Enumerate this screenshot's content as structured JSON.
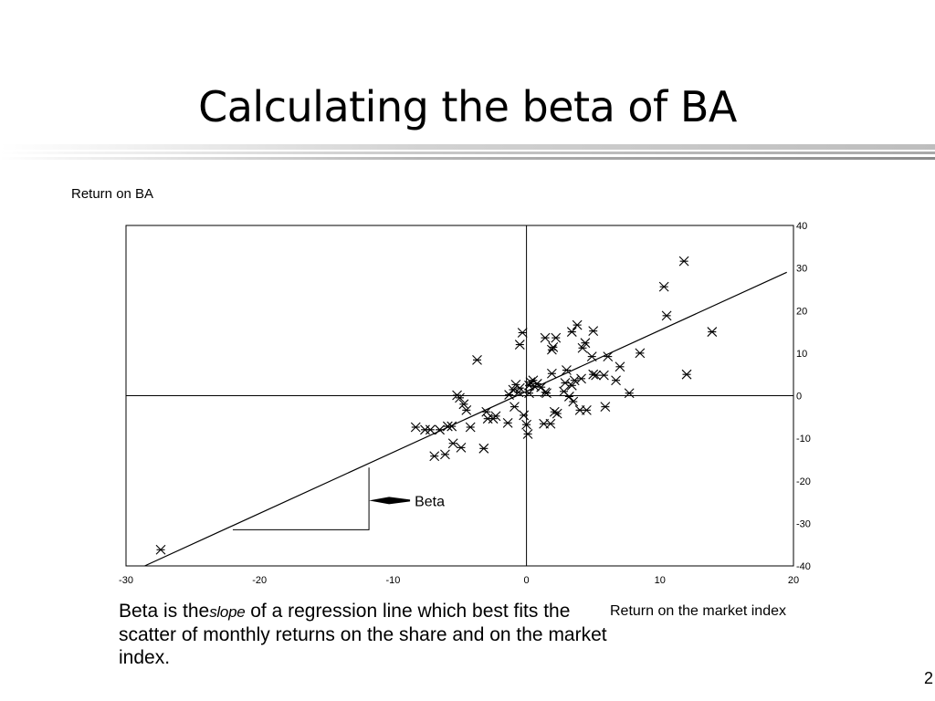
{
  "slide": {
    "title": "Calculating the beta of BA",
    "page_number": "2"
  },
  "caption": {
    "before": "Beta is the",
    "slope_word": "slope",
    "after": " of a regression line which best fits the scatter of monthly returns on the share and on the market index."
  },
  "chart_data": {
    "type": "scatter",
    "xlabel": "Return on the market index",
    "ylabel": "Return on BA",
    "xlim": [
      -30,
      20
    ],
    "ylim": [
      -40,
      40
    ],
    "x_ticks": [
      -30,
      -20,
      -10,
      0,
      10,
      20
    ],
    "y_ticks": [
      40,
      30,
      20,
      10,
      0,
      -10,
      -20,
      -30,
      -40
    ],
    "y_axis_side": "right",
    "grid": false,
    "reference_lines": {
      "x": 0,
      "y": 0
    },
    "marker": "asterisk",
    "points": [
      [
        -27.4,
        -36.2
      ],
      [
        -8.3,
        -7.4
      ],
      [
        -7.6,
        -8.0
      ],
      [
        -7.2,
        -8.0
      ],
      [
        -6.9,
        -14.2
      ],
      [
        -6.5,
        -8.0
      ],
      [
        -6.1,
        -13.8
      ],
      [
        -5.9,
        -7.2
      ],
      [
        -5.6,
        -7.2
      ],
      [
        -5.5,
        -11.2
      ],
      [
        -5.2,
        0.1
      ],
      [
        -5.0,
        -0.5
      ],
      [
        -4.9,
        -12.2
      ],
      [
        -4.7,
        -2.0
      ],
      [
        -4.5,
        -3.4
      ],
      [
        -4.2,
        -7.4
      ],
      [
        -3.7,
        8.4
      ],
      [
        -3.2,
        -12.4
      ],
      [
        -3.0,
        -3.8
      ],
      [
        -2.9,
        -5.4
      ],
      [
        -2.5,
        -5.4
      ],
      [
        -2.3,
        -4.8
      ],
      [
        -1.4,
        -6.4
      ],
      [
        -1.3,
        0.2
      ],
      [
        -1.0,
        1.4
      ],
      [
        -0.9,
        -2.6
      ],
      [
        -0.8,
        2.6
      ],
      [
        -0.6,
        0.8
      ],
      [
        -0.5,
        1.8
      ],
      [
        -0.5,
        12.0
      ],
      [
        -0.3,
        14.8
      ],
      [
        -0.2,
        -4.6
      ],
      [
        0.0,
        -6.8
      ],
      [
        0.1,
        -9.0
      ],
      [
        0.2,
        2.4
      ],
      [
        0.2,
        0.6
      ],
      [
        0.3,
        3.2
      ],
      [
        0.5,
        3.6
      ],
      [
        0.6,
        2.2
      ],
      [
        0.8,
        2.8
      ],
      [
        1.1,
        2.0
      ],
      [
        1.3,
        -6.6
      ],
      [
        1.4,
        0.8
      ],
      [
        1.5,
        0.6
      ],
      [
        1.4,
        13.6
      ],
      [
        1.8,
        -6.6
      ],
      [
        1.9,
        5.2
      ],
      [
        1.9,
        10.8
      ],
      [
        2.0,
        11.4
      ],
      [
        2.1,
        -3.8
      ],
      [
        2.3,
        -4.2
      ],
      [
        2.2,
        13.6
      ],
      [
        2.8,
        1.0
      ],
      [
        2.9,
        3.0
      ],
      [
        3.0,
        6.0
      ],
      [
        3.2,
        -0.2
      ],
      [
        3.4,
        15.0
      ],
      [
        3.4,
        2.4
      ],
      [
        3.6,
        3.6
      ],
      [
        3.5,
        -1.4
      ],
      [
        3.8,
        16.6
      ],
      [
        4.0,
        -3.4
      ],
      [
        4.1,
        4.0
      ],
      [
        4.2,
        11.2
      ],
      [
        4.4,
        12.4
      ],
      [
        4.5,
        -3.4
      ],
      [
        4.9,
        9.2
      ],
      [
        5.0,
        15.2
      ],
      [
        5.0,
        5.0
      ],
      [
        5.2,
        4.8
      ],
      [
        5.8,
        4.8
      ],
      [
        5.9,
        -2.6
      ],
      [
        6.1,
        9.2
      ],
      [
        6.7,
        3.6
      ],
      [
        7.0,
        6.8
      ],
      [
        7.7,
        0.6
      ],
      [
        8.5,
        10.0
      ],
      [
        10.3,
        25.6
      ],
      [
        10.5,
        18.8
      ],
      [
        11.8,
        31.6
      ],
      [
        12.0,
        5.0
      ],
      [
        13.9,
        15.0
      ]
    ],
    "regression_line": {
      "x": [
        -28.6,
        19.5
      ],
      "y": [
        -40,
        29
      ]
    },
    "annotation": {
      "text": "Beta",
      "rise_run_triangle": {
        "x_start": -22,
        "x_end": -11.8,
        "y_low": -31.5,
        "y_high": -16.9
      }
    }
  },
  "colors": {
    "ink": "#000000",
    "background": "#ffffff"
  }
}
